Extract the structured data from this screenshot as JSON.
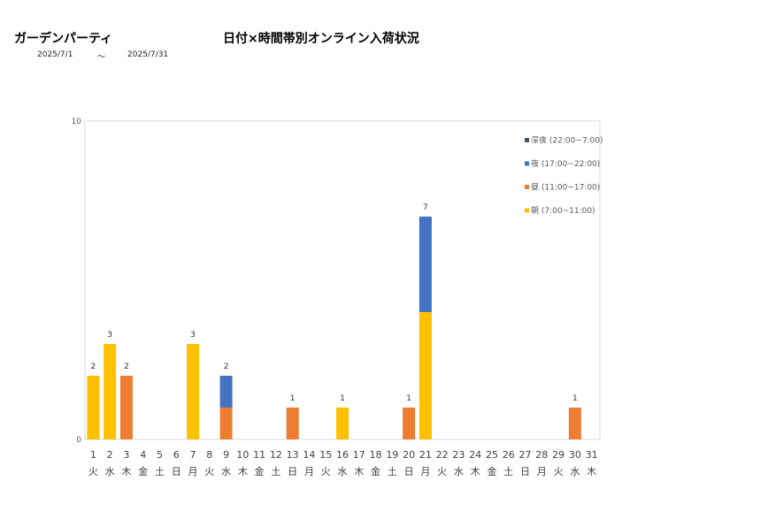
{
  "header": {
    "store_name": "ガーデンパーティ",
    "title": "日付×時間帯別オンライン入荷状況",
    "date_from": "2025/7/1",
    "date_sep": "～",
    "date_to": "2025/7/31"
  },
  "chart_data": {
    "type": "bar",
    "stacked": true,
    "title": "日付×時間帯別オンライン入荷状況",
    "xlabel": "",
    "ylabel": "",
    "ylim": [
      0,
      10
    ],
    "yticks": [
      "0",
      "10"
    ],
    "grid": false,
    "legend_position": "top-right",
    "categories": [
      "1",
      "2",
      "3",
      "4",
      "5",
      "6",
      "7",
      "8",
      "9",
      "10",
      "11",
      "12",
      "13",
      "14",
      "15",
      "16",
      "17",
      "18",
      "19",
      "20",
      "21",
      "22",
      "23",
      "24",
      "25",
      "26",
      "27",
      "28",
      "29",
      "30",
      "31"
    ],
    "weekdays": [
      "火",
      "水",
      "木",
      "金",
      "土",
      "日",
      "月",
      "火",
      "水",
      "木",
      "金",
      "土",
      "日",
      "月",
      "火",
      "水",
      "木",
      "金",
      "土",
      "日",
      "月",
      "火",
      "水",
      "木",
      "金",
      "土",
      "日",
      "月",
      "火",
      "水",
      "木"
    ],
    "series": [
      {
        "name": "朝 (7:00~11:00)",
        "color": "#FFC000",
        "values": [
          2,
          3,
          0,
          0,
          0,
          0,
          3,
          0,
          0,
          0,
          0,
          0,
          0,
          0,
          0,
          1,
          0,
          0,
          0,
          0,
          4,
          0,
          0,
          0,
          0,
          0,
          0,
          0,
          0,
          0,
          0
        ]
      },
      {
        "name": "昼 (11:00~17:00)",
        "color": "#ED7D31",
        "values": [
          0,
          0,
          2,
          0,
          0,
          0,
          0,
          0,
          1,
          0,
          0,
          0,
          1,
          0,
          0,
          0,
          0,
          0,
          0,
          1,
          0,
          0,
          0,
          0,
          0,
          0,
          0,
          0,
          0,
          1,
          0
        ]
      },
      {
        "name": "夜 (17:00~22:00)",
        "color": "#4472C4",
        "values": [
          0,
          0,
          0,
          0,
          0,
          0,
          0,
          0,
          1,
          0,
          0,
          0,
          0,
          0,
          0,
          0,
          0,
          0,
          0,
          0,
          3,
          0,
          0,
          0,
          0,
          0,
          0,
          0,
          0,
          0,
          0
        ]
      },
      {
        "name": "深夜 (22:00~7:00)",
        "color": "#44546A",
        "values": [
          0,
          0,
          0,
          0,
          0,
          0,
          0,
          0,
          0,
          0,
          0,
          0,
          0,
          0,
          0,
          0,
          0,
          0,
          0,
          0,
          0,
          0,
          0,
          0,
          0,
          0,
          0,
          0,
          0,
          0,
          0
        ]
      }
    ],
    "totals": [
      "2",
      "3",
      "2",
      "",
      "",
      "",
      "3",
      "",
      "2",
      "",
      "",
      "",
      "1",
      "",
      "",
      "1",
      "",
      "",
      "",
      "1",
      "7",
      "",
      "",
      "",
      "",
      "",
      "",
      "",
      "",
      "1",
      ""
    ]
  }
}
